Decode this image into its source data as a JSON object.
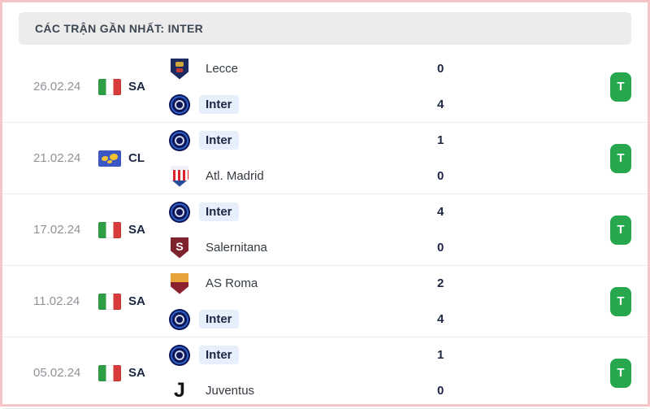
{
  "header": {
    "title": "CÁC TRẬN GẦN NHẤT: INTER"
  },
  "colors": {
    "win_badge": "#27a84d",
    "header_bg": "#ececec",
    "header_text": "#3c4653",
    "inter_highlight": "#e7eefc",
    "row_border": "#ececec",
    "date_color": "#8f9399",
    "text_dark": "#1c2743",
    "frame_border": "#f6c6c6"
  },
  "matches": [
    {
      "date": "26.02.24",
      "comp": {
        "code": "SA",
        "flag": "italy"
      },
      "teams": [
        {
          "name": "Lecce",
          "score": "0",
          "logo": "lecce"
        },
        {
          "name": "Inter",
          "score": "4",
          "logo": "inter"
        }
      ],
      "result": {
        "label": "T"
      }
    },
    {
      "date": "21.02.24",
      "comp": {
        "code": "CL",
        "flag": "cl"
      },
      "teams": [
        {
          "name": "Inter",
          "score": "1",
          "logo": "inter"
        },
        {
          "name": "Atl. Madrid",
          "score": "0",
          "logo": "atletico"
        }
      ],
      "result": {
        "label": "T"
      }
    },
    {
      "date": "17.02.24",
      "comp": {
        "code": "SA",
        "flag": "italy"
      },
      "teams": [
        {
          "name": "Inter",
          "score": "4",
          "logo": "inter"
        },
        {
          "name": "Salernitana",
          "score": "0",
          "logo": "salernitana"
        }
      ],
      "result": {
        "label": "T"
      }
    },
    {
      "date": "11.02.24",
      "comp": {
        "code": "SA",
        "flag": "italy"
      },
      "teams": [
        {
          "name": "AS Roma",
          "score": "2",
          "logo": "roma"
        },
        {
          "name": "Inter",
          "score": "4",
          "logo": "inter"
        }
      ],
      "result": {
        "label": "T"
      }
    },
    {
      "date": "05.02.24",
      "comp": {
        "code": "SA",
        "flag": "italy"
      },
      "teams": [
        {
          "name": "Inter",
          "score": "1",
          "logo": "inter"
        },
        {
          "name": "Juventus",
          "score": "0",
          "logo": "juventus"
        }
      ],
      "result": {
        "label": "T"
      }
    }
  ]
}
